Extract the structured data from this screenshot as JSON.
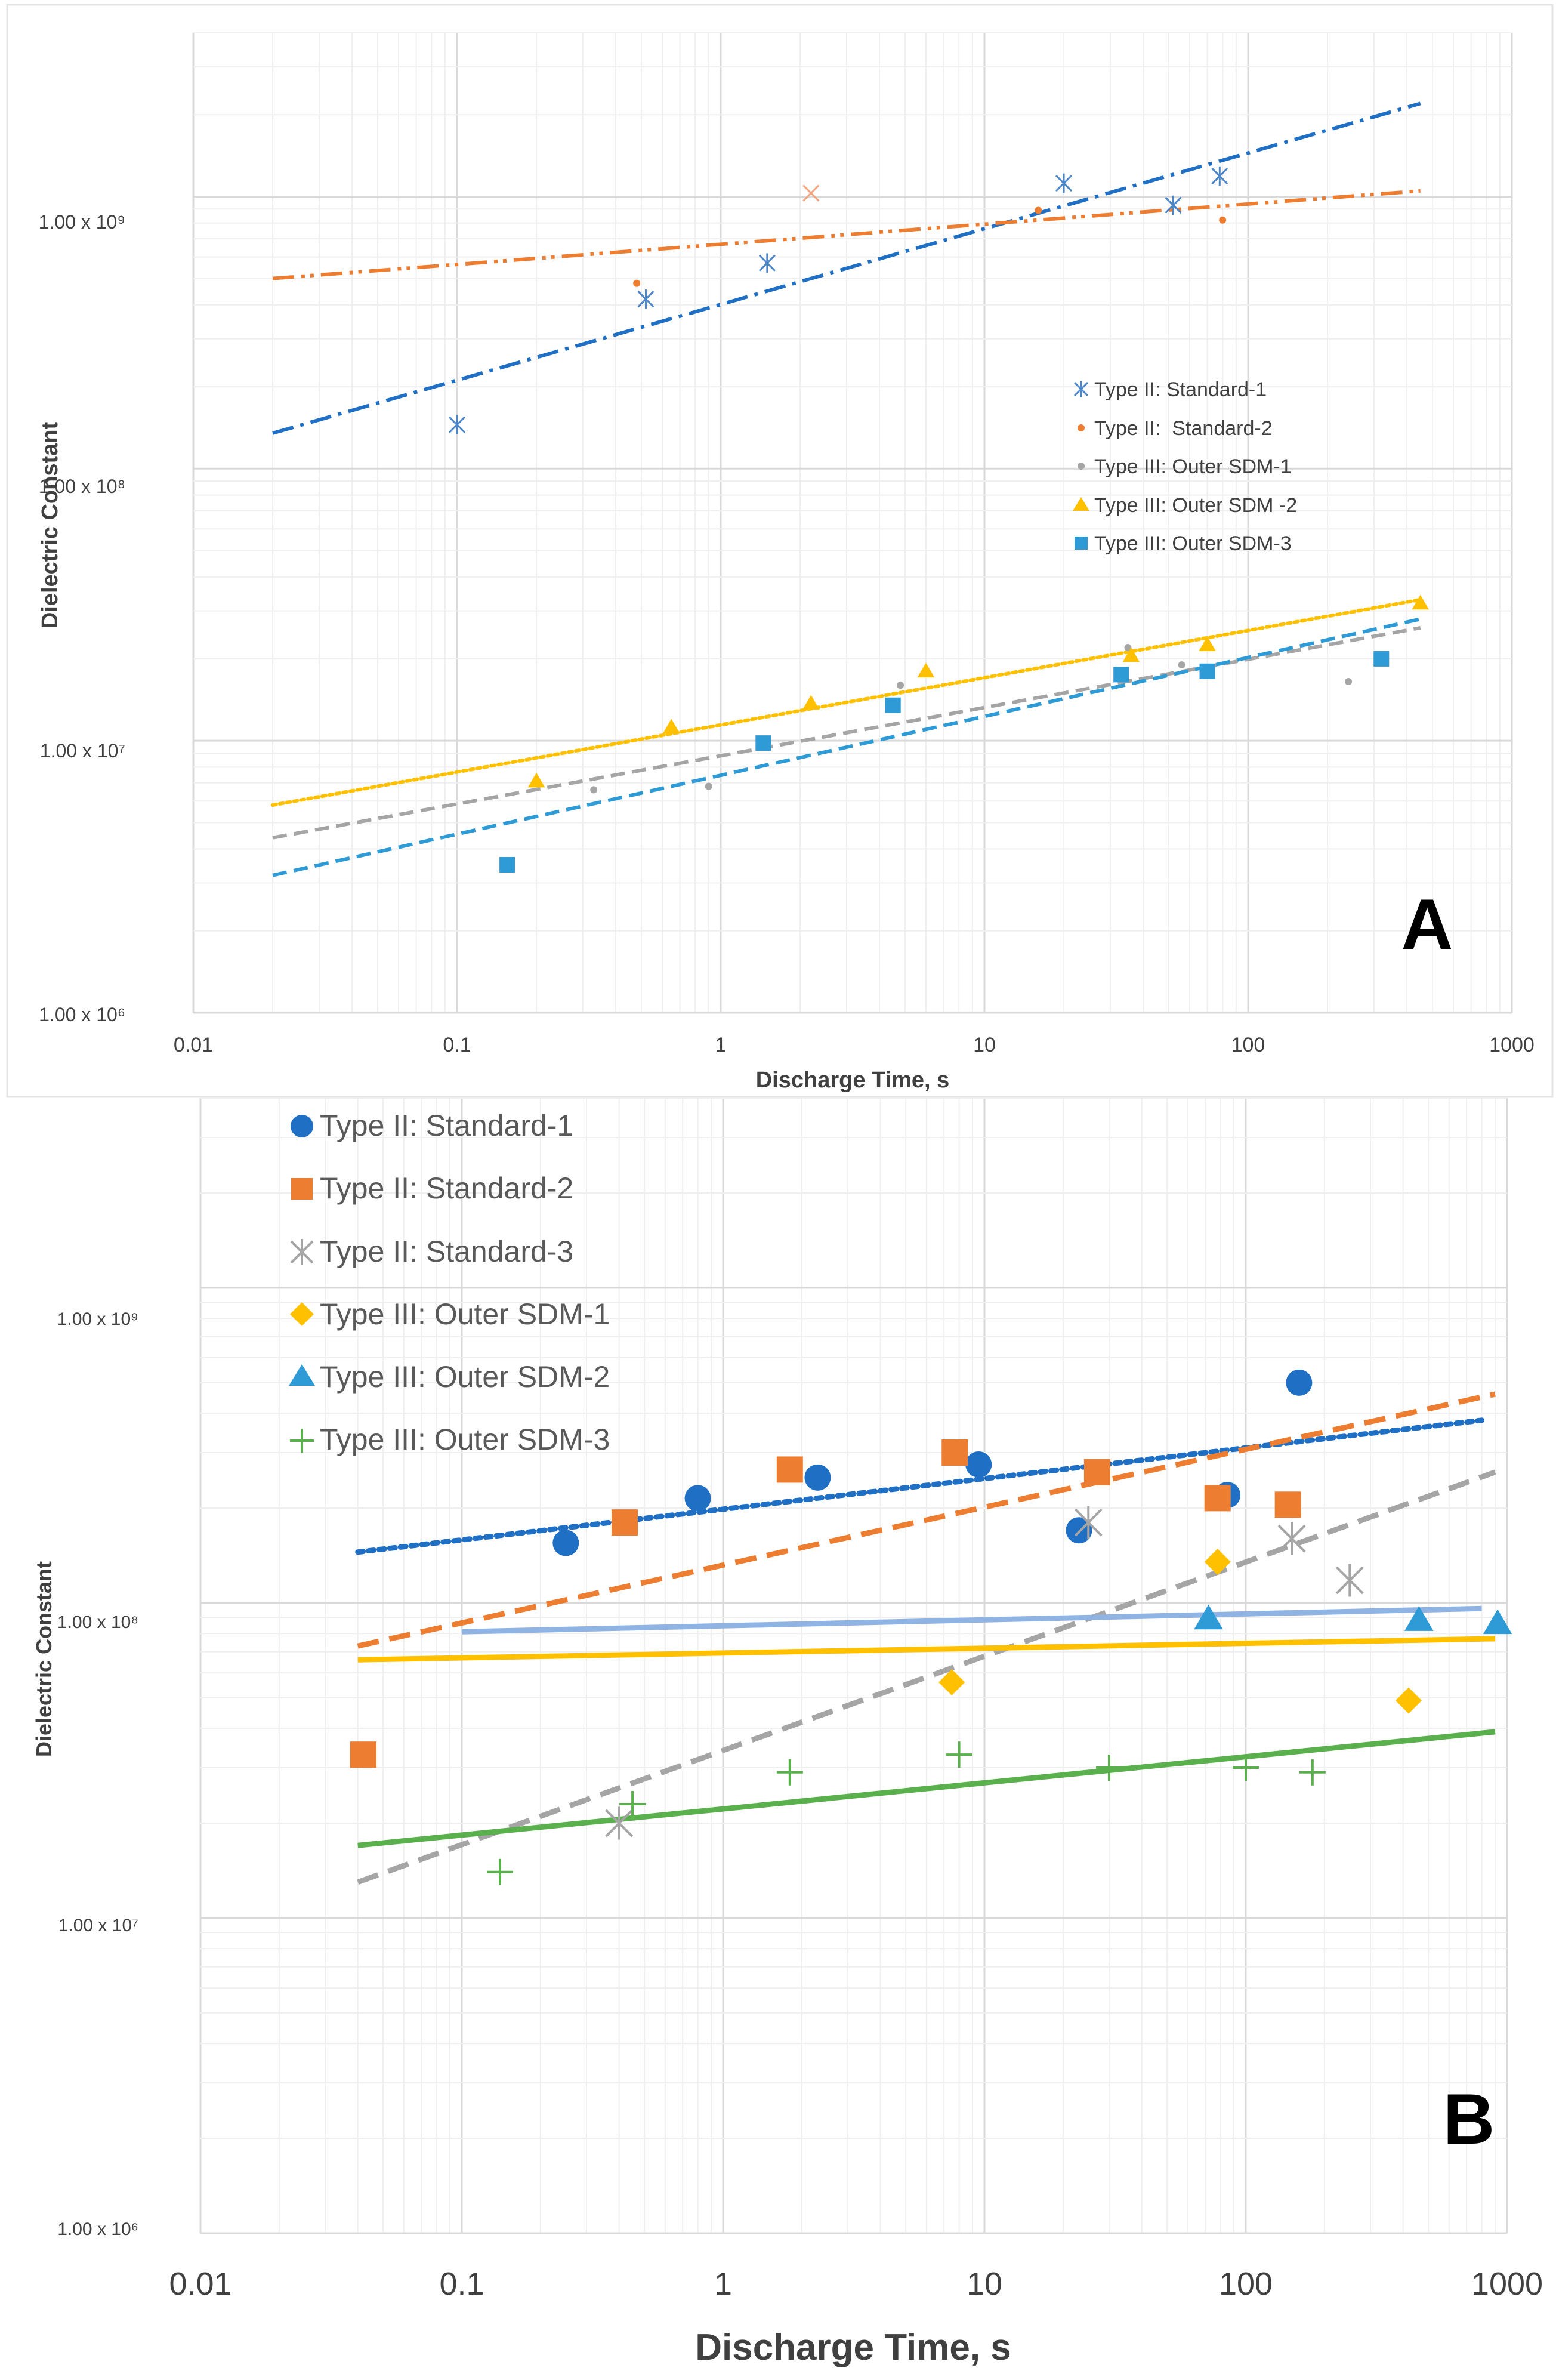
{
  "figure": {
    "colors": {
      "blue_dark": "#1f6fc4",
      "orange": "#ed7d31",
      "gray": "#a5a5a5",
      "gold": "#ffc000",
      "sky": "#2e9bd6",
      "light_blue": "#8fb3e3",
      "green": "#5bb04e",
      "grid_major": "#d9d9d9",
      "grid_minor": "#efefef",
      "text": "#404040"
    }
  },
  "chart_data": [
    {
      "panel": "A",
      "type": "scatter",
      "scale": "log-log",
      "xlabel": "Discharge Time, s",
      "ylabel": "Dielectric Constant",
      "xlim": [
        0.01,
        1000
      ],
      "ylim": [
        1000000,
        4000000000
      ],
      "x_ticks": [
        0.01,
        0.1,
        1,
        10,
        100,
        1000
      ],
      "x_tick_labels": [
        "0.01",
        "0.1",
        "1",
        "10",
        "100",
        "1000"
      ],
      "y_ticks": [
        1000000,
        10000000,
        100000000,
        1000000000
      ],
      "y_tick_labels": [
        "1.00 x 10⁶",
        "1.00 x 10⁷",
        "1.00 x 10⁸",
        "1.00 x 10⁹"
      ],
      "panel_label": "A",
      "legend_position": "right",
      "series": [
        {
          "name": "Type II: Standard-1",
          "marker": "asterisk",
          "color": "#4a86c8",
          "points": [
            [
              0.1,
              145000000
            ],
            [
              0.52,
              420000000
            ],
            [
              1.5,
              570000000
            ],
            [
              20,
              1120000000
            ],
            [
              52,
              930000000
            ],
            [
              78,
              1190000000
            ]
          ],
          "trend": {
            "style": "dashdot",
            "color": "#1f6fc4",
            "from": [
              0.02,
              135000000
            ],
            "to": [
              450,
              2200000000
            ]
          }
        },
        {
          "name": "Type II:  Standard-2",
          "marker": "dot",
          "color": "#ed7d31",
          "points": [
            [
              0.48,
              480000000
            ],
            [
              16,
              890000000
            ],
            [
              80,
              820000000
            ]
          ],
          "trend": {
            "style": "dashdotdot",
            "color": "#ed7d31",
            "from": [
              0.02,
              500000000
            ],
            "to": [
              450,
              1050000000
            ]
          }
        },
        {
          "name": "Type III: Outer SDM-1",
          "marker": "dot",
          "color": "#a5a5a5",
          "points": [
            [
              0.33,
              6600000
            ],
            [
              0.9,
              6800000
            ],
            [
              4.8,
              16000000
            ],
            [
              35,
              22000000
            ],
            [
              56,
              19000000
            ],
            [
              240,
              16500000
            ]
          ],
          "trend": {
            "style": "dashed",
            "color": "#a5a5a5",
            "from": [
              0.02,
              4400000
            ],
            "to": [
              450,
              26000000
            ]
          }
        },
        {
          "name": "Type III: Outer SDM -2",
          "marker": "triangle",
          "color": "#ffc000",
          "points": [
            [
              0.2,
              7100000
            ],
            [
              0.65,
              11200000
            ],
            [
              2.2,
              13700000
            ],
            [
              6,
              18000000
            ],
            [
              36,
              20500000
            ],
            [
              70,
              22500000
            ],
            [
              450,
              32000000
            ]
          ],
          "trend": {
            "style": "dotted",
            "color": "#ffc000",
            "from": [
              0.02,
              5800000
            ],
            "to": [
              450,
              33000000
            ]
          }
        },
        {
          "name": "Type III: Outer SDM-3",
          "marker": "square",
          "color": "#2e9bd6",
          "points": [
            [
              0.155,
              3500000
            ],
            [
              1.45,
              9800000
            ],
            [
              4.5,
              13500000
            ],
            [
              33,
              17500000
            ],
            [
              70,
              18000000
            ],
            [
              320,
              20000000
            ]
          ],
          "trend": {
            "style": "dashed",
            "color": "#2e9bd6",
            "from": [
              0.02,
              3200000
            ],
            "to": [
              450,
              28000000
            ]
          }
        }
      ],
      "extra_markers": [
        {
          "marker": "cross",
          "color": "#f4a582",
          "point": [
            2.2,
            1030000000
          ]
        }
      ]
    },
    {
      "panel": "B",
      "type": "scatter",
      "scale": "log-log",
      "xlabel": "Discharge Time, s",
      "ylabel": "Dielectric Constant",
      "xlim": [
        0.01,
        1000
      ],
      "ylim": [
        1000000,
        4000000000
      ],
      "x_ticks": [
        0.01,
        0.1,
        1,
        10,
        100,
        1000
      ],
      "x_tick_labels": [
        "0.01",
        "0.1",
        "1",
        "10",
        "100",
        "1000"
      ],
      "y_ticks": [
        1000000,
        10000000,
        100000000,
        1000000000
      ],
      "y_tick_labels": [
        "1.00 x 10⁶",
        "1.00 x 10⁷",
        "1.00 x 10⁸",
        "1.00 x 10⁹"
      ],
      "panel_label": "B",
      "legend_position": "top-left",
      "series": [
        {
          "name": "Type II: Standard-1",
          "marker": "circle",
          "color": "#1f6fc4",
          "points": [
            [
              0.25,
              155000000
            ],
            [
              0.8,
              215000000
            ],
            [
              2.3,
              250000000
            ],
            [
              9.5,
              275000000
            ],
            [
              23,
              170000000
            ],
            [
              85,
              220000000
            ],
            [
              160,
              500000000
            ]
          ],
          "trend": {
            "style": "dotted",
            "color": "#1f6fc4",
            "from": [
              0.04,
              145000000
            ],
            "to": [
              800,
              380000000
            ]
          }
        },
        {
          "name": "Type II: Standard-2",
          "marker": "square",
          "color": "#ed7d31",
          "points": [
            [
              0.042,
              33000000
            ],
            [
              0.42,
              180000000
            ],
            [
              1.8,
              265000000
            ],
            [
              7.7,
              300000000
            ],
            [
              27,
              260000000
            ],
            [
              78,
              215000000
            ],
            [
              145,
              205000000
            ]
          ],
          "trend": {
            "style": "dashed",
            "color": "#ed7d31",
            "from": [
              0.04,
              73000000
            ],
            "to": [
              900,
              460000000
            ]
          }
        },
        {
          "name": "Type II: Standard-3",
          "marker": "asterisk",
          "color": "#a5a5a5",
          "points": [
            [
              0.4,
              20000000
            ],
            [
              25,
              180000000
            ],
            [
              150,
              160000000
            ],
            [
              250,
              118000000
            ]
          ],
          "trend": {
            "style": "dashed",
            "color": "#a5a5a5",
            "from": [
              0.04,
              13000000
            ],
            "to": [
              900,
              260000000
            ]
          }
        },
        {
          "name": "Type III: Outer SDM-1",
          "marker": "diamond",
          "color": "#ffc000",
          "points": [
            [
              7.5,
              56000000
            ],
            [
              78,
              135000000
            ],
            [
              420,
              49000000
            ]
          ],
          "trend": {
            "style": "solid",
            "color": "#ffc000",
            "from": [
              0.04,
              66000000
            ],
            "to": [
              900,
              77000000
            ]
          }
        },
        {
          "name": "Type III: Outer SDM-2",
          "marker": "triangle",
          "color": "#2e9bd6",
          "points": [
            [
              72,
              89000000
            ],
            [
              460,
              88000000
            ],
            [
              920,
              86000000
            ]
          ],
          "trend": {
            "style": "solid",
            "color": "#8fb3e3",
            "from": [
              0.1,
              81000000
            ],
            "to": [
              800,
              96000000
            ]
          }
        },
        {
          "name": "Type III: Outer SDM-3",
          "marker": "plus",
          "color": "#5bb04e",
          "points": [
            [
              0.14,
              14000000
            ],
            [
              0.45,
              23000000
            ],
            [
              1.8,
              29000000
            ],
            [
              8,
              33000000
            ],
            [
              30,
              30000000
            ],
            [
              100,
              30000000
            ],
            [
              180,
              29000000
            ]
          ],
          "trend": {
            "style": "solid",
            "color": "#5bb04e",
            "from": [
              0.04,
              17000000
            ],
            "to": [
              900,
              39000000
            ]
          }
        }
      ]
    }
  ]
}
